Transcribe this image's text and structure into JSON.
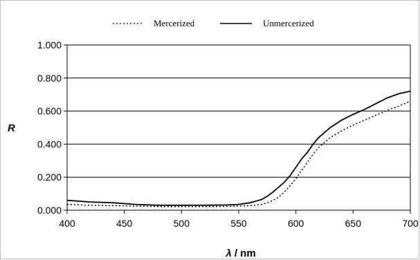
{
  "chart_data": {
    "type": "line",
    "title": "",
    "xlabel_symbol": "λ",
    "xlabel_unit": " / nm",
    "ylabel": "R",
    "xlim": [
      400,
      700
    ],
    "ylim": [
      0,
      1
    ],
    "x_ticks": [
      "400",
      "450",
      "500",
      "550",
      "600",
      "650",
      "700"
    ],
    "x_tick_values": [
      400,
      450,
      500,
      550,
      600,
      650,
      700
    ],
    "y_ticks": [
      "0.000",
      "0.200",
      "0.400",
      "0.600",
      "0.800",
      "1.000"
    ],
    "y_tick_values": [
      0,
      0.2,
      0.4,
      0.6,
      0.8,
      1.0
    ],
    "grid": "horizontal",
    "legend_position": "top-center",
    "series": [
      {
        "name": "Mercerized",
        "style": "dotted",
        "color": "#000000",
        "x": [
          400,
          420,
          440,
          460,
          480,
          500,
          520,
          540,
          550,
          560,
          570,
          575,
          580,
          585,
          590,
          595,
          600,
          605,
          610,
          615,
          620,
          630,
          640,
          650,
          660,
          670,
          680,
          690,
          700
        ],
        "y": [
          0.035,
          0.03,
          0.028,
          0.025,
          0.022,
          0.022,
          0.022,
          0.023,
          0.025,
          0.028,
          0.035,
          0.045,
          0.06,
          0.08,
          0.11,
          0.15,
          0.19,
          0.24,
          0.29,
          0.34,
          0.38,
          0.44,
          0.48,
          0.515,
          0.545,
          0.575,
          0.605,
          0.63,
          0.66
        ]
      },
      {
        "name": "Unmercerized",
        "style": "solid",
        "color": "#000000",
        "x": [
          400,
          420,
          440,
          460,
          480,
          500,
          520,
          540,
          550,
          560,
          565,
          570,
          575,
          580,
          585,
          590,
          595,
          600,
          605,
          610,
          615,
          620,
          630,
          640,
          650,
          660,
          670,
          680,
          690,
          700
        ],
        "y": [
          0.06,
          0.05,
          0.045,
          0.035,
          0.03,
          0.03,
          0.03,
          0.032,
          0.035,
          0.045,
          0.055,
          0.065,
          0.085,
          0.11,
          0.14,
          0.17,
          0.21,
          0.26,
          0.31,
          0.35,
          0.4,
          0.44,
          0.5,
          0.545,
          0.58,
          0.61,
          0.645,
          0.68,
          0.705,
          0.72
        ]
      }
    ]
  }
}
